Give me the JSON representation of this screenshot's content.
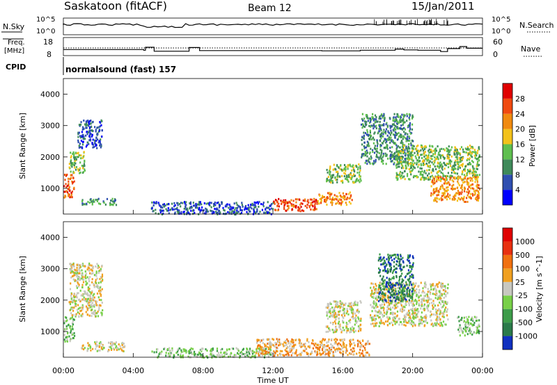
{
  "header": {
    "station": "Saskatoon (fitACF)",
    "beam": "Beam 12",
    "date": "15/Jan/2011"
  },
  "summary": {
    "nsky_label": "N.Sky",
    "freq_label_line1": "Freq.",
    "freq_label_line2": "[MHz]",
    "cpid_label": "CPID",
    "nsearch_label": "N.Search",
    "nave_label": "Nave",
    "noise_ticks": [
      "10^5",
      "10^0"
    ],
    "freq_ticks": [
      "18",
      "8"
    ],
    "nave_ticks": [
      "60",
      "0"
    ],
    "cpid_text": "normalsound (fast) 157"
  },
  "colors": {
    "power": [
      "#0000ff",
      "#2f4fb0",
      "#3f8a5a",
      "#5fbf4f",
      "#f3c21a",
      "#f08a10",
      "#f04a10",
      "#e00000"
    ],
    "velocity": [
      "#1030c0",
      "#2a7a4a",
      "#3d9c4a",
      "#78d048",
      "#c8c8c0",
      "#f0a020",
      "#f07010",
      "#e83010",
      "#e00000"
    ]
  },
  "chart_data": [
    {
      "type": "heatmap",
      "name": "power",
      "ylabel": "Slant Range [km]",
      "xlabel": "",
      "ylim": [
        180,
        4500
      ],
      "yticks": [
        "1000",
        "2000",
        "3000",
        "4000"
      ],
      "xticks": [
        "00:00",
        "04:00",
        "08:00",
        "12:00",
        "16:00",
        "20:00",
        "00:00"
      ],
      "colorbar_title": "Power [dB]",
      "colorbar_ticks": [
        "28",
        "24",
        "20",
        "16",
        "12",
        "8",
        "4"
      ],
      "features": [
        {
          "t": [
            0.0,
            0.6
          ],
          "r": [
            700,
            1500
          ],
          "level": 28
        },
        {
          "t": [
            0.3,
            1.2
          ],
          "r": [
            1500,
            2200
          ],
          "level": 16
        },
        {
          "t": [
            0.8,
            2.2
          ],
          "r": [
            2300,
            3200
          ],
          "level": 8
        },
        {
          "t": [
            1.0,
            3.0
          ],
          "r": [
            500,
            700
          ],
          "level": 12
        },
        {
          "t": [
            5.0,
            12.0
          ],
          "r": [
            200,
            600
          ],
          "level": 8
        },
        {
          "t": [
            12.0,
            14.5
          ],
          "r": [
            300,
            700
          ],
          "level": 28
        },
        {
          "t": [
            14.5,
            16.5
          ],
          "r": [
            500,
            900
          ],
          "level": 24
        },
        {
          "t": [
            15.0,
            17.0
          ],
          "r": [
            1200,
            1800
          ],
          "level": 16
        },
        {
          "t": [
            17.0,
            20.0
          ],
          "r": [
            1800,
            3400
          ],
          "level": 12
        },
        {
          "t": [
            19.0,
            23.8
          ],
          "r": [
            1300,
            2400
          ],
          "level": 16
        },
        {
          "t": [
            21.0,
            23.8
          ],
          "r": [
            600,
            1400
          ],
          "level": 24
        }
      ]
    },
    {
      "type": "heatmap",
      "name": "velocity",
      "ylabel": "Slant Range [km]",
      "xlabel": "Time UT",
      "ylim": [
        180,
        4500
      ],
      "yticks": [
        "1000",
        "2000",
        "3000",
        "4000"
      ],
      "xticks": [
        "00:00",
        "04:00",
        "08:00",
        "12:00",
        "16:00",
        "20:00",
        "00:00"
      ],
      "colorbar_title": "Velocity [m s^-1]",
      "colorbar_ticks": [
        "1000",
        "500",
        "100",
        "25",
        "-25",
        "-100",
        "-500",
        "-1000"
      ],
      "features": [
        {
          "t": [
            0.0,
            0.6
          ],
          "r": [
            700,
            1500
          ],
          "level": 100
        },
        {
          "t": [
            0.3,
            2.2
          ],
          "r": [
            1500,
            3200
          ],
          "level": 0
        },
        {
          "t": [
            1.0,
            3.5
          ],
          "r": [
            400,
            700
          ],
          "level": 0
        },
        {
          "t": [
            5.0,
            12.0
          ],
          "r": [
            200,
            500
          ],
          "level": 100
        },
        {
          "t": [
            11.0,
            17.5
          ],
          "r": [
            250,
            800
          ],
          "level": -100
        },
        {
          "t": [
            15.0,
            17.0
          ],
          "r": [
            1000,
            2000
          ],
          "level": 0
        },
        {
          "t": [
            17.5,
            22.0
          ],
          "r": [
            1200,
            2600
          ],
          "level": 0
        },
        {
          "t": [
            18.0,
            20.0
          ],
          "r": [
            2000,
            3500
          ],
          "level": 500
        },
        {
          "t": [
            22.5,
            23.8
          ],
          "r": [
            900,
            1500
          ],
          "level": 100
        }
      ]
    }
  ]
}
